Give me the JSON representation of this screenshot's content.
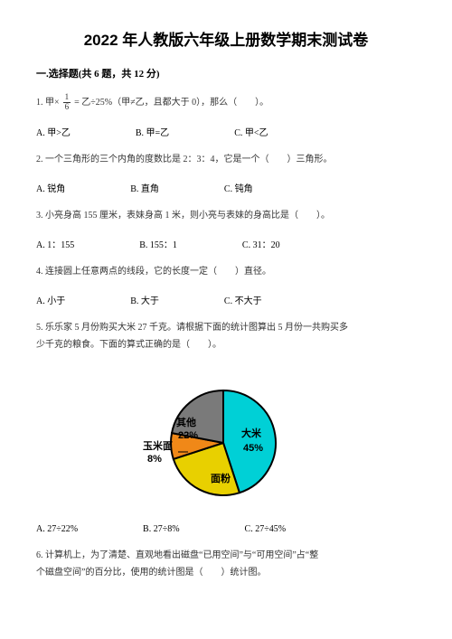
{
  "title": "2022 年人教版六年级上册数学期末测试卷",
  "section": "一.选择题(共 6 题，共 12 分)",
  "q1": {
    "prefix": "1. 甲×",
    "frac_num": "1",
    "frac_den": "6",
    "suffix": "= 乙÷25%（甲≠乙，且都大于 0），那么（　　）。",
    "optA": "A. 甲>乙",
    "optB": "B. 甲=乙",
    "optC": "C. 甲<乙"
  },
  "q2": {
    "text": "2. 一个三角形的三个内角的度数比是 2：3：4，它是一个（　　）三角形。",
    "optA": "A. 锐角",
    "optB": "B. 直角",
    "optC": "C. 钝角"
  },
  "q3": {
    "text": "3. 小亮身高 155 厘米，表妹身高 1 米，则小亮与表妹的身高比是（　　）。",
    "optA": "A. 1：155",
    "optB": "B. 155：1",
    "optC": "C. 31：20"
  },
  "q4": {
    "text": "4. 连接圆上任意两点的线段，它的长度一定（　　）直径。",
    "optA": "A. 小于",
    "optB": "B. 大于",
    "optC": "C. 不大于"
  },
  "q5": {
    "line1": "5. 乐乐家 5 月份购买大米 27 千克。请根据下面的统计图算出 5 月份一共购买多",
    "line2": "少千克的粮食。下面的算式正确的是（　　）。",
    "optA": "A. 27÷22%",
    "optB": "B. 27÷8%",
    "optC": "C. 27÷45%",
    "chart": {
      "type": "pie",
      "slices": [
        {
          "label": "大米",
          "pct": "45%",
          "color": "#00d0d6",
          "start": -90,
          "sweep": 162
        },
        {
          "label": "面粉",
          "pct": "",
          "color": "#e8d000",
          "start": 72,
          "sweep": 90
        },
        {
          "label": "玉米面",
          "pct": "8%",
          "color": "#f08818",
          "start": 162,
          "sweep": 28.8
        },
        {
          "label": "其他",
          "pct": "22%",
          "color": "#7a7a7a",
          "start": 190.8,
          "sweep": 79.2
        }
      ],
      "outline": "#000000",
      "label_玉米面": "玉米面",
      "label_8": "8%",
      "label_其他": "其他",
      "label_22": "22%",
      "label_大米": "大米",
      "label_45": "45%",
      "label_面粉": "面粉"
    }
  },
  "q6": {
    "line1": "6. 计算机上，为了清楚、直观地看出磁盘“已用空间”与“可用空间”占“整",
    "line2": "个磁盘空间”的百分比，使用的统计图是（　　）统计图。"
  }
}
